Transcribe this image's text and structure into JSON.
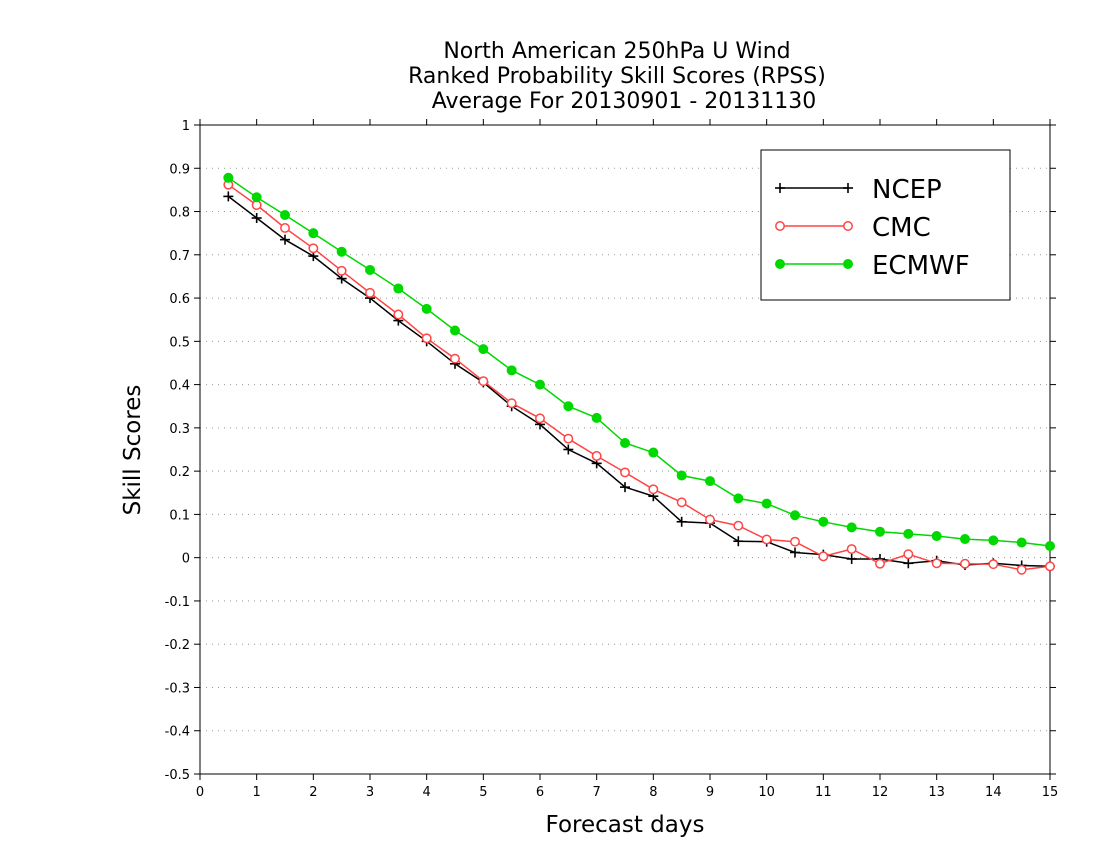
{
  "chart_data": {
    "type": "line",
    "title_lines": [
      "North American 250hPa U Wind",
      "Ranked Probability Skill Scores (RPSS)",
      "Average For 20130901 - 20131130"
    ],
    "xlabel": "Forecast days",
    "ylabel": "Skill Scores",
    "xlim": [
      0,
      15
    ],
    "ylim": [
      -0.5,
      1
    ],
    "xticks": [
      0,
      1,
      2,
      3,
      4,
      5,
      6,
      7,
      8,
      9,
      10,
      11,
      12,
      13,
      14,
      15
    ],
    "yticks": [
      -0.5,
      -0.4,
      -0.3,
      -0.2,
      -0.1,
      0,
      0.1,
      0.2,
      0.3,
      0.4,
      0.5,
      0.6,
      0.7,
      0.8,
      0.9,
      1
    ],
    "ytick_labels": [
      "-0.5",
      "-0.4",
      "-0.3",
      "-0.2",
      "-0.1",
      "0",
      "0.1",
      "0.2",
      "0.3",
      "0.4",
      "0.5",
      "0.6",
      "0.7",
      "0.8",
      "0.9",
      "1"
    ],
    "grid": "horizontal dotted",
    "legend_position": "top-right",
    "x": [
      0.5,
      1,
      1.5,
      2,
      2.5,
      3,
      3.5,
      4,
      4.5,
      5,
      5.5,
      6,
      6.5,
      7,
      7.5,
      8,
      8.5,
      9,
      9.5,
      10,
      10.5,
      11,
      11.5,
      12,
      12.5,
      13,
      13.5,
      14,
      14.5,
      15
    ],
    "series": [
      {
        "name": "NCEP",
        "color": "#000000",
        "marker": "plus",
        "values": [
          0.835,
          0.785,
          0.735,
          0.697,
          0.645,
          0.6,
          0.548,
          0.5,
          0.448,
          0.405,
          0.35,
          0.308,
          0.25,
          0.218,
          0.163,
          0.142,
          0.083,
          0.08,
          0.038,
          0.037,
          0.012,
          0.007,
          -0.003,
          -0.003,
          -0.013,
          -0.007,
          -0.017,
          -0.013,
          -0.018,
          -0.02
        ]
      },
      {
        "name": "CMC",
        "color": "#ff4444",
        "marker": "open-circle",
        "values": [
          0.862,
          0.815,
          0.762,
          0.715,
          0.663,
          0.612,
          0.562,
          0.507,
          0.46,
          0.408,
          0.357,
          0.322,
          0.275,
          0.235,
          0.197,
          0.158,
          0.128,
          0.088,
          0.074,
          0.042,
          0.037,
          0.003,
          0.02,
          -0.014,
          0.008,
          -0.013,
          -0.014,
          -0.015,
          -0.028,
          -0.02
        ]
      },
      {
        "name": "ECMWF",
        "color": "#00d800",
        "marker": "filled-circle",
        "values": [
          0.878,
          0.833,
          0.792,
          0.75,
          0.707,
          0.665,
          0.622,
          0.575,
          0.525,
          0.482,
          0.433,
          0.4,
          0.35,
          0.323,
          0.265,
          0.243,
          0.19,
          0.177,
          0.137,
          0.125,
          0.098,
          0.083,
          0.07,
          0.06,
          0.055,
          0.05,
          0.043,
          0.04,
          0.035,
          0.027
        ]
      }
    ]
  }
}
